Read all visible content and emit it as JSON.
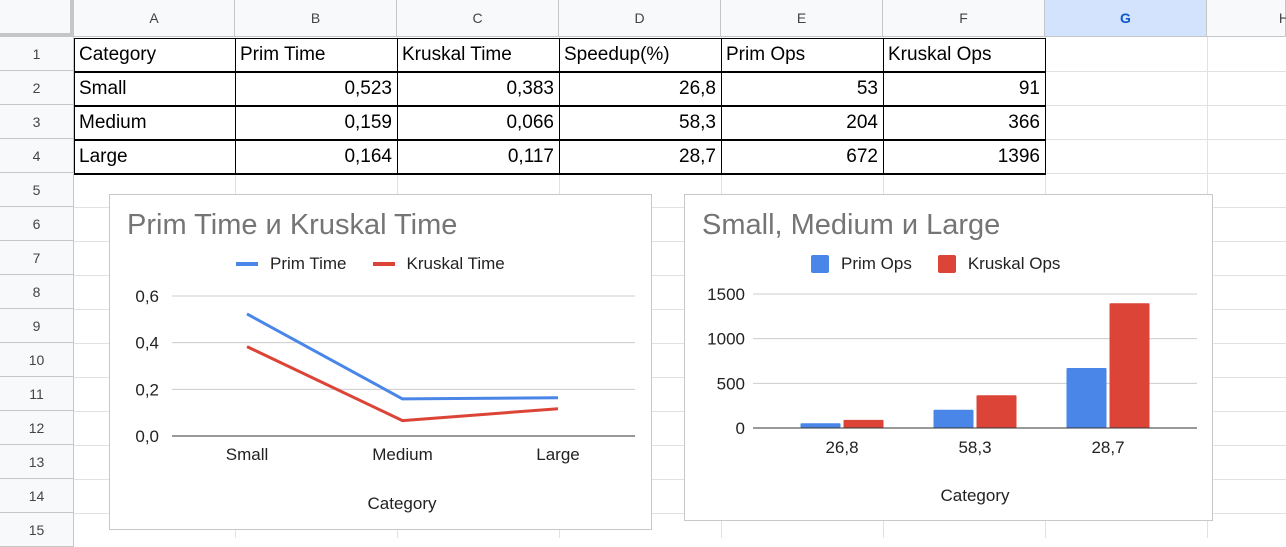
{
  "columns": [
    "A",
    "B",
    "C",
    "D",
    "E",
    "F",
    "G",
    "H"
  ],
  "selected_column": "G",
  "rows": [
    "1",
    "2",
    "3",
    "4",
    "5",
    "6",
    "7",
    "8",
    "9",
    "10",
    "11",
    "12",
    "13",
    "14",
    "15"
  ],
  "table": {
    "headers": [
      "Category",
      "Prim Time",
      "Kruskal Time",
      "Speedup(%)",
      "Prim Ops",
      "Kruskal Ops"
    ],
    "rows": [
      [
        "Small",
        "0,523",
        "0,383",
        "26,8",
        "53",
        "91"
      ],
      [
        "Medium",
        "0,159",
        "0,066",
        "58,3",
        "204",
        "366"
      ],
      [
        "Large",
        "0,164",
        "0,117",
        "28,7",
        "672",
        "1396"
      ]
    ]
  },
  "colors": {
    "blue": "#4a86e8",
    "red": "#db4437"
  },
  "chart_data": [
    {
      "type": "line",
      "title": "Prim Time и Kruskal Time",
      "xlabel": "Category",
      "ylabel": "",
      "categories": [
        "Small",
        "Medium",
        "Large"
      ],
      "series": [
        {
          "name": "Prim Time",
          "values": [
            0.523,
            0.159,
            0.164
          ],
          "color": "#4a86e8"
        },
        {
          "name": "Kruskal Time",
          "values": [
            0.383,
            0.066,
            0.117
          ],
          "color": "#db4437"
        }
      ],
      "ylim": [
        0,
        0.6
      ],
      "yticks": [
        "0,0",
        "0,2",
        "0,4",
        "0,6"
      ],
      "legend": "top",
      "grid": true
    },
    {
      "type": "bar",
      "title": "Small, Medium и Large",
      "xlabel": "Category",
      "ylabel": "",
      "categories": [
        "26,8",
        "58,3",
        "28,7"
      ],
      "series": [
        {
          "name": "Prim Ops",
          "values": [
            53,
            204,
            672
          ],
          "color": "#4a86e8"
        },
        {
          "name": "Kruskal Ops",
          "values": [
            91,
            366,
            1396
          ],
          "color": "#db4437"
        }
      ],
      "ylim": [
        0,
        1500
      ],
      "yticks": [
        "0",
        "500",
        "1000",
        "1500"
      ],
      "legend": "top",
      "grid": true
    }
  ]
}
